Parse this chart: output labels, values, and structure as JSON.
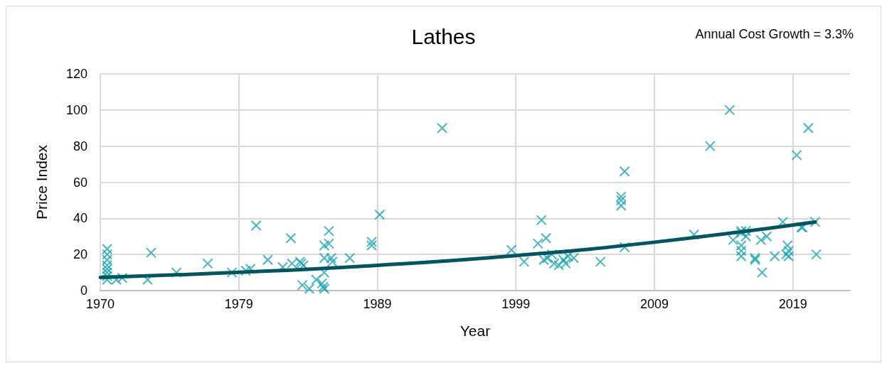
{
  "chart_data": {
    "type": "scatter",
    "title": "Lathes",
    "xlabel": "Year",
    "ylabel": "Price Index",
    "annotations": [
      "Annual Cost Growth = 3.3%"
    ],
    "xlim": [
      "1970-01-01",
      "2024-02-05"
    ],
    "xticks": [
      {
        "value": "1970-01-01",
        "label": "1970"
      },
      {
        "value": "1979-12-30",
        "label": "1979"
      },
      {
        "value": "1989-12-28",
        "label": "1989"
      },
      {
        "value": "1999-12-26",
        "label": "1999"
      },
      {
        "value": "2009-12-24",
        "label": "2009"
      },
      {
        "value": "2019-12-22",
        "label": "2019"
      }
    ],
    "ylim": [
      0,
      120
    ],
    "yticks": [
      0,
      20,
      40,
      60,
      80,
      100,
      120
    ],
    "grid": true,
    "series": [
      {
        "color": "#17a2b0",
        "marker": "cross",
        "x": [
          "1970-07",
          "1970-07",
          "1970-07",
          "1970-07",
          "1970-07",
          "1970-07",
          "1970-07",
          "1970-07",
          "1971-03",
          "1971-08",
          "1973-06",
          "1973-09",
          "1975-07",
          "1977-10",
          "1979-07",
          "1980-07",
          "1980-11",
          "1981-04",
          "1982-02",
          "1983-03",
          "1983-10",
          "1983-11",
          "1984-06",
          "1984-07",
          "1984-09",
          "1984-08",
          "1985-02",
          "1985-08",
          "1986-01",
          "1986-02",
          "1986-03",
          "1986-03",
          "1986-03",
          "1986-03",
          "1986-07",
          "1986-07",
          "1986-09",
          "1986-10",
          "1988-01",
          "1989-08",
          "1989-08",
          "1990-03",
          "1994-09",
          "1999-09",
          "2000-08",
          "2001-08",
          "2001-11",
          "2002-03",
          "2002-01",
          "2002-04",
          "2002-08",
          "2002-10",
          "2003-02",
          "2003-06",
          "2003-08",
          "2003-10",
          "2004-03",
          "2006-02",
          "2007-08",
          "2007-08",
          "2007-08",
          "2007-11",
          "2007-11",
          "2012-11",
          "2014-01",
          "2015-06",
          "2015-09",
          "2016-04",
          "2016-04",
          "2016-04",
          "2016-04",
          "2016-04",
          "2016-08",
          "2016-08",
          "2017-04",
          "2017-04",
          "2017-09",
          "2017-10",
          "2018-02",
          "2018-09",
          "2019-04",
          "2019-07",
          "2019-08",
          "2019-09",
          "2019-09",
          "2020-04",
          "2020-08",
          "2020-09",
          "2021-02",
          "2021-08",
          "2021-09"
        ],
        "values": [
          23,
          20,
          17,
          14,
          12,
          10,
          8,
          6,
          6,
          7,
          6,
          21,
          10,
          15,
          10,
          11,
          12,
          36,
          17,
          13,
          29,
          15,
          16,
          15,
          14,
          3,
          1,
          6,
          4,
          2,
          1,
          10,
          18,
          25,
          33,
          26,
          18,
          16,
          18,
          27,
          25,
          42,
          90,
          22.5,
          16,
          26,
          39,
          29,
          17,
          18,
          20,
          15,
          14,
          17,
          15,
          19,
          18,
          16,
          52,
          50,
          47,
          66,
          24,
          31,
          80,
          100,
          28,
          33,
          32,
          25,
          22,
          19,
          30,
          33,
          18,
          17,
          28,
          10,
          30,
          19,
          38,
          20,
          25,
          22,
          19,
          75,
          35,
          35,
          90,
          38,
          20
        ]
      },
      {
        "type": "line",
        "color": "#005560",
        "marker": "none",
        "x": [
          "1970-01",
          "1980-01",
          "1990-01",
          "2000-01",
          "2010-01",
          "2021-08"
        ],
        "values": [
          7.3,
          10.1,
          14,
          19.4,
          26.8,
          38
        ]
      }
    ]
  }
}
